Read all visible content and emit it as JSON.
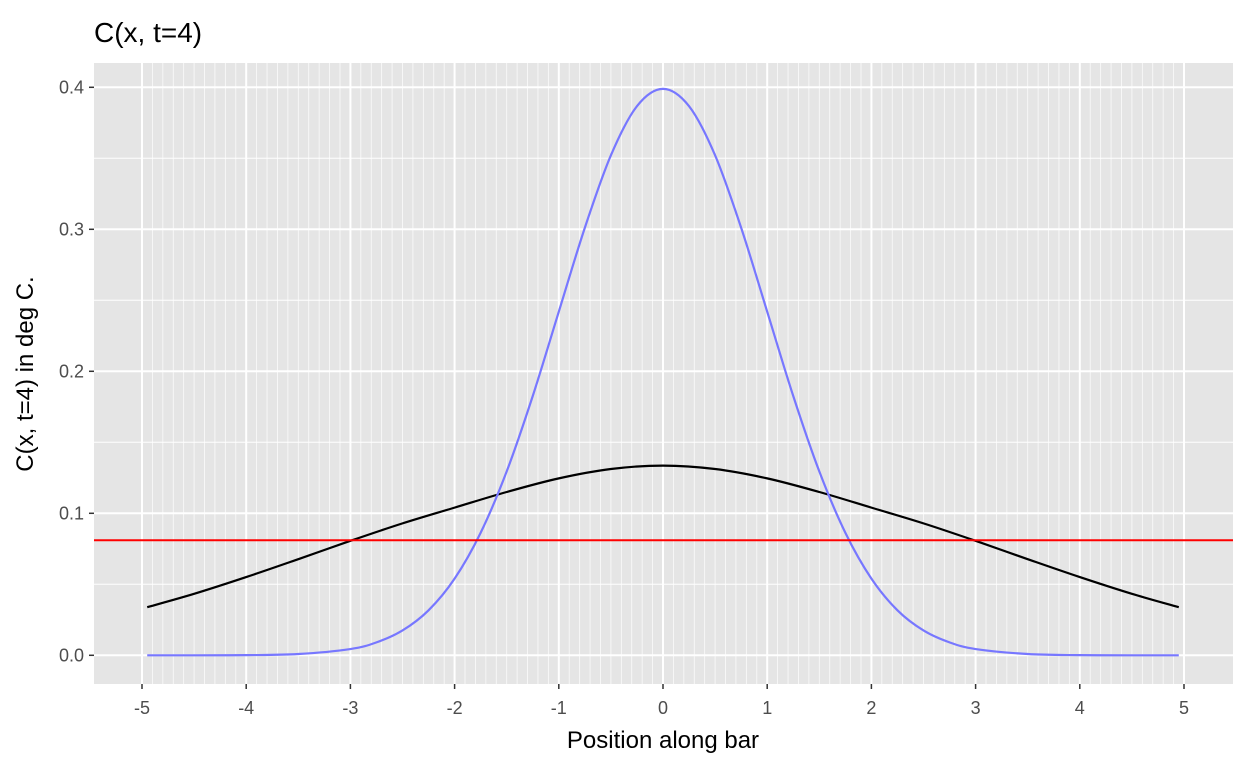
{
  "chart_data": {
    "type": "line",
    "title": "C(x, t=4)",
    "xlabel": "Position along bar",
    "ylabel": "C(x, t=4) in deg C.",
    "xlim": [
      -5.0,
      5.0
    ],
    "ylim": [
      -0.02,
      0.42
    ],
    "x_ticks": [
      -5,
      -4,
      -3,
      -2,
      -1,
      0,
      1,
      2,
      3,
      4,
      5
    ],
    "x_tick_labels": [
      "-5",
      "-4",
      "-3",
      "-2",
      "-1",
      "0",
      "1",
      "2",
      "3",
      "4",
      "5"
    ],
    "y_ticks": [
      0.0,
      0.1,
      0.2,
      0.3,
      0.4
    ],
    "y_tick_labels": [
      "0.0",
      "0.1",
      "0.2",
      "0.3",
      "0.4"
    ],
    "grid": true,
    "minor_x_gridline_spacing": 0.1,
    "background": "#E5E5E5",
    "series": [
      {
        "color": "#000000",
        "x": [
          -4.95,
          -4.5,
          -4,
          -3.5,
          -3,
          -2.5,
          -2,
          -1.5,
          -1,
          -0.5,
          0,
          0.5,
          1,
          1.5,
          2,
          2.5,
          3,
          3.5,
          4,
          4.5,
          4.95
        ],
        "values": [
          0.0339,
          0.0433,
          0.0551,
          0.0677,
          0.0806,
          0.0929,
          0.104,
          0.115,
          0.1246,
          0.1312,
          0.1336,
          0.1312,
          0.1246,
          0.115,
          0.104,
          0.0929,
          0.0806,
          0.0677,
          0.0551,
          0.0433,
          0.0339
        ]
      },
      {
        "color": "#7777FF",
        "x": [
          -4.95,
          -4.5,
          -4,
          -3.5,
          -3,
          -2.75,
          -2.5,
          -2.25,
          -2,
          -1.75,
          -1.5,
          -1.25,
          -1,
          -0.75,
          -0.5,
          -0.25,
          0,
          0.25,
          0.5,
          0.75,
          1,
          1.25,
          1.5,
          1.75,
          2,
          2.25,
          2.5,
          2.75,
          3,
          3.5,
          4,
          4.5,
          4.95
        ],
        "values": [
          0.0,
          0.0,
          0.0001,
          0.0009,
          0.0044,
          0.0091,
          0.0175,
          0.0317,
          0.054,
          0.0863,
          0.1295,
          0.1826,
          0.242,
          0.3011,
          0.3521,
          0.3867,
          0.3989,
          0.3867,
          0.3521,
          0.3011,
          0.242,
          0.1826,
          0.1295,
          0.0863,
          0.054,
          0.0317,
          0.0175,
          0.0091,
          0.0044,
          0.0009,
          0.0001,
          0.0,
          0.0
        ]
      }
    ],
    "hlines": [
      {
        "y": 0.081,
        "color": "#FF0000"
      }
    ]
  }
}
